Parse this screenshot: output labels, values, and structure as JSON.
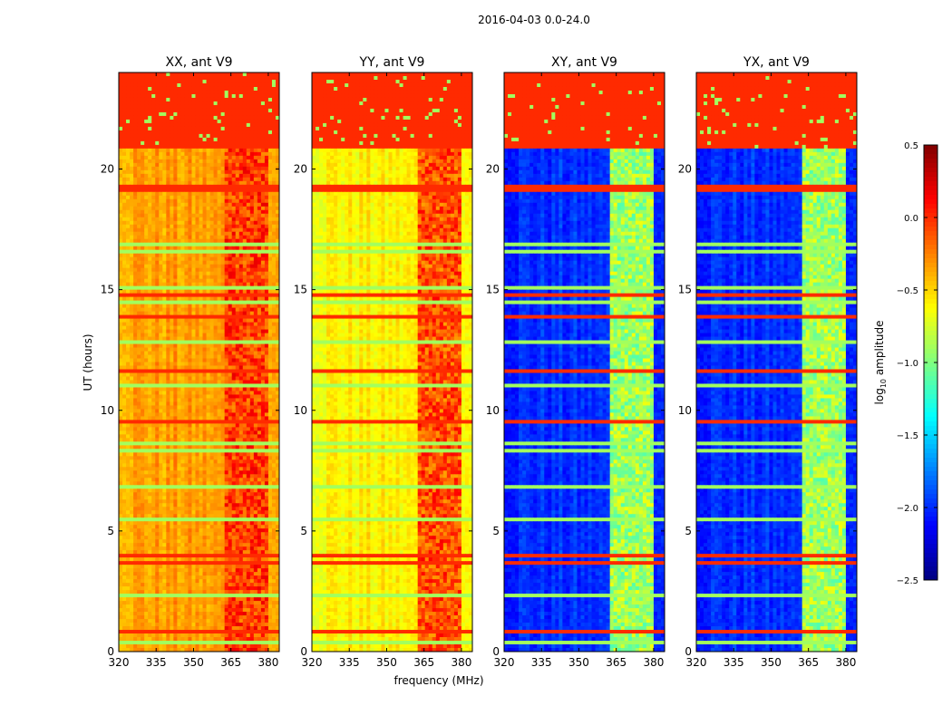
{
  "chart_data": {
    "type": "heatmap",
    "title": "2016-04-03 0.0-24.0",
    "xlabel": "frequency (MHz)",
    "ylabel": "UT (hours)",
    "xlim": [
      320,
      384.4
    ],
    "ylim": [
      0,
      24
    ],
    "xticks": [
      "320",
      "335",
      "350",
      "365",
      "380"
    ],
    "xtick_values": [
      320,
      335,
      350,
      365,
      380
    ],
    "yticks": [
      "0",
      "5",
      "10",
      "15",
      "20"
    ],
    "ytick_values": [
      0,
      5,
      10,
      15,
      20
    ],
    "colorbar": {
      "label": "log10 amplitude",
      "label_main": "log",
      "label_sub": "10",
      "label_rest": " amplitude",
      "colormap": "jet",
      "range": [
        -2.5,
        0.5
      ],
      "ticks": [
        "0.5",
        "0.0",
        "−0.5",
        "−1.0",
        "−1.5",
        "−2.0",
        "−2.5"
      ],
      "tick_values": [
        0.5,
        0.0,
        -0.5,
        -1.0,
        -1.5,
        -2.0,
        -2.5
      ]
    },
    "flagged_hours": [
      20.9,
      24
    ],
    "flagged_value": 0.0,
    "rfi_band_mhz": [
      362,
      380
    ],
    "panels": [
      {
        "title": "XX, ant V9",
        "base": -0.35,
        "rfi_level": -0.05,
        "line_level": -0.9
      },
      {
        "title": "YY, ant V9",
        "base": -0.6,
        "rfi_level": -0.1,
        "line_level": -0.9
      },
      {
        "title": "XY, ant V9",
        "base": -2.0,
        "rfi_level": -0.9,
        "line_level": -0.9
      },
      {
        "title": "YX, ant V9",
        "base": -2.0,
        "rfi_level": -0.9,
        "line_level": -0.9
      }
    ]
  }
}
